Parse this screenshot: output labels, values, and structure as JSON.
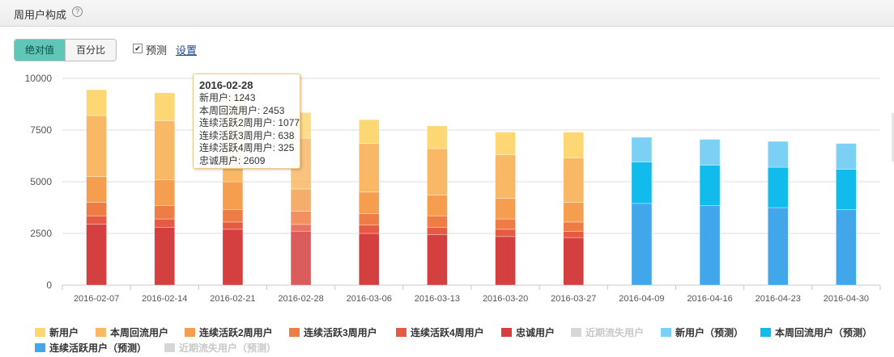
{
  "header": {
    "title": "周用户构成",
    "help_icon": "question-circle-icon"
  },
  "toolbar": {
    "absolute_label": "绝对值",
    "percent_label": "百分比",
    "active_mode": "absolute",
    "forecast_label": "预测",
    "forecast_checked": true,
    "settings_label": "设置"
  },
  "tooltip": {
    "date": "2016-02-28",
    "rows": [
      "新用户: 1243",
      "本周回流用户: 2453",
      "连续活跃2周用户: 1077",
      "连续活跃3周用户: 638",
      "连续活跃4周用户: 325",
      "忠诚用户: 2609"
    ]
  },
  "legend": [
    {
      "label": "新用户",
      "color": "#fdd774",
      "enabled": true
    },
    {
      "label": "本周回流用户",
      "color": "#f8b866",
      "enabled": true
    },
    {
      "label": "连续活跃2周用户",
      "color": "#f59e50",
      "enabled": true
    },
    {
      "label": "连续活跃3周用户",
      "color": "#ee7c45",
      "enabled": true
    },
    {
      "label": "连续活跃4周用户",
      "color": "#e55a42",
      "enabled": true
    },
    {
      "label": "忠诚用户",
      "color": "#d43f3f",
      "enabled": true
    },
    {
      "label": "近期流失用户",
      "color": "#d6d6d6",
      "enabled": false
    },
    {
      "label": "新用户（预测）",
      "color": "#7bd0f4",
      "enabled": true
    },
    {
      "label": "本周回流用户（预测）",
      "color": "#11bbec",
      "enabled": true
    },
    {
      "label": "连续活跃用户（预测）",
      "color": "#41a6ea",
      "enabled": true
    },
    {
      "label": "近期流失用户（预测）",
      "color": "#d6d6d6",
      "enabled": false
    }
  ],
  "chart_data": {
    "type": "bar",
    "stacked": true,
    "title": "周用户构成",
    "categories": [
      "2016-02-07",
      "2016-02-14",
      "2016-02-21",
      "2016-02-28",
      "2016-03-06",
      "2016-03-13",
      "2016-03-20",
      "2016-03-27",
      "2016-04-09",
      "2016-04-16",
      "2016-04-23",
      "2016-04-30"
    ],
    "ylim": [
      0,
      10000
    ],
    "yticks": [
      0,
      2500,
      5000,
      7500,
      10000
    ],
    "highlighted_category": "2016-02-28",
    "series": [
      {
        "name": "忠诚用户",
        "color": "#d43f3f",
        "values": [
          2950,
          2800,
          2700,
          2609,
          2500,
          2450,
          2350,
          2300,
          null,
          null,
          null,
          null
        ]
      },
      {
        "name": "连续活跃4周用户",
        "color": "#e55a42",
        "values": [
          400,
          400,
          350,
          325,
          400,
          350,
          350,
          300,
          null,
          null,
          null,
          null
        ]
      },
      {
        "name": "连续活跃3周用户",
        "color": "#ee7c45",
        "values": [
          650,
          650,
          600,
          638,
          550,
          550,
          500,
          450,
          null,
          null,
          null,
          null
        ]
      },
      {
        "name": "连续活跃2周用户",
        "color": "#f59e50",
        "values": [
          1250,
          1250,
          1350,
          1077,
          1050,
          1000,
          1000,
          950,
          null,
          null,
          null,
          null
        ]
      },
      {
        "name": "本周回流用户",
        "color": "#f8b866",
        "values": [
          2950,
          2850,
          2850,
          2453,
          2350,
          2250,
          2100,
          2150,
          null,
          null,
          null,
          null
        ]
      },
      {
        "name": "新用户",
        "color": "#fdd774",
        "values": [
          1250,
          1350,
          1350,
          1243,
          1150,
          1100,
          1100,
          1250,
          null,
          null,
          null,
          null
        ]
      },
      {
        "name": "连续活跃用户（预测）",
        "color": "#41a6ea",
        "values": [
          null,
          null,
          null,
          null,
          null,
          null,
          null,
          null,
          3950,
          3850,
          3750,
          3650
        ]
      },
      {
        "name": "本周回流用户（预测）",
        "color": "#11bbec",
        "values": [
          null,
          null,
          null,
          null,
          null,
          null,
          null,
          null,
          2000,
          1950,
          1950,
          1950
        ]
      },
      {
        "name": "新用户（预测）",
        "color": "#7bd0f4",
        "values": [
          null,
          null,
          null,
          null,
          null,
          null,
          null,
          null,
          1200,
          1250,
          1250,
          1250
        ]
      }
    ]
  }
}
